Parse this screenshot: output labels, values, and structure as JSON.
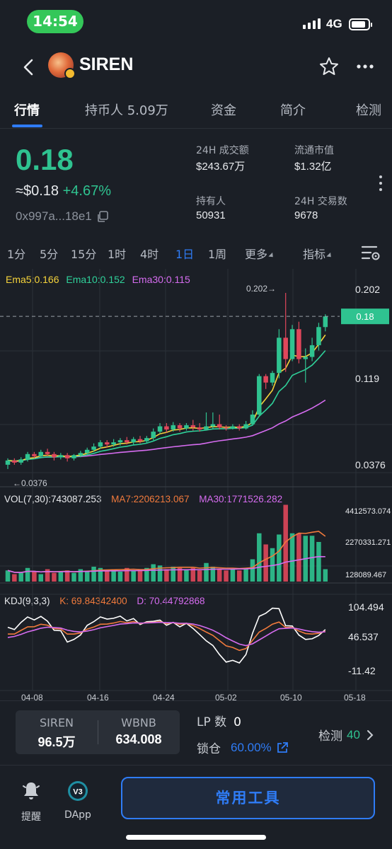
{
  "status": {
    "time": "14:54",
    "network": "4G",
    "battery_level": 0.85
  },
  "nav": {
    "token_name": "SIREN",
    "back_icon": "chevron-left-icon",
    "star_icon": "star-icon",
    "more_icon": "more-dots-icon"
  },
  "tabs": [
    "行情",
    "持币人 5.09万",
    "资金",
    "简介",
    "检测"
  ],
  "active_tab": 0,
  "price": {
    "main": "0.18",
    "usd": "≈$0.18",
    "change": "+4.67%",
    "address": "0x997a...18e1"
  },
  "stats": [
    {
      "label": "24H 成交额",
      "value": "$243.67万"
    },
    {
      "label": "流通市值",
      "value": "$1.32亿"
    },
    {
      "label": "持有人",
      "value": "50931"
    },
    {
      "label": "24H 交易数",
      "value": "9678"
    }
  ],
  "intervals": [
    "1分",
    "5分",
    "15分",
    "1时",
    "4时",
    "1日",
    "1周",
    "更多",
    "指标"
  ],
  "active_interval": 5,
  "indicators": {
    "ema5": "Ema5:0.166",
    "ema10": "Ema10:0.152",
    "ema30": "Ema30:0.115",
    "vol": "VOL(7,30):743087.253",
    "ma7": "MA7:2206213.067",
    "ma30": "MA30:1771526.282",
    "kdj": "KDJ(9,3,3)",
    "k": "K:  69.84342400",
    "d": "D:  70.44792868"
  },
  "colors": {
    "up": "#2fc390",
    "down": "#e0475b",
    "ema5": "#f5d33b",
    "ema10": "#2fd19a",
    "ema30": "#d66cf0",
    "ma7": "#f07a3c",
    "ma30": "#d66cf0",
    "k_line": "#ffffff",
    "accent": "#2f7cf6"
  },
  "chart_data": {
    "type": "candlestick",
    "price_axis": {
      "labels": [
        "0.202",
        "0.119",
        "0.0376"
      ],
      "current": "0.18",
      "max_marker": "0.202→",
      "min_marker": "←0.0376"
    },
    "volume_axis": {
      "labels": [
        "4412573.074",
        "2270331.271",
        "128089.467"
      ]
    },
    "kdj_axis": {
      "labels": [
        "104.494",
        "46.537",
        "-11.42"
      ]
    },
    "x_labels": [
      "04-08",
      "04-16",
      "04-24",
      "05-02",
      "05-10",
      "05-18"
    ],
    "candles": [
      [
        0.041,
        0.045,
        0.037,
        0.047
      ],
      [
        0.045,
        0.043,
        0.041,
        0.047
      ],
      [
        0.043,
        0.046,
        0.041,
        0.048
      ],
      [
        0.046,
        0.051,
        0.044,
        0.053
      ],
      [
        0.051,
        0.049,
        0.047,
        0.053
      ],
      [
        0.049,
        0.053,
        0.047,
        0.055
      ],
      [
        0.053,
        0.051,
        0.049,
        0.056
      ],
      [
        0.051,
        0.048,
        0.045,
        0.053
      ],
      [
        0.048,
        0.05,
        0.046,
        0.052
      ],
      [
        0.05,
        0.047,
        0.044,
        0.052
      ],
      [
        0.047,
        0.05,
        0.045,
        0.051
      ],
      [
        0.05,
        0.052,
        0.048,
        0.054
      ],
      [
        0.052,
        0.055,
        0.05,
        0.057
      ],
      [
        0.055,
        0.058,
        0.053,
        0.061
      ],
      [
        0.058,
        0.062,
        0.056,
        0.064
      ],
      [
        0.062,
        0.06,
        0.057,
        0.064
      ],
      [
        0.06,
        0.062,
        0.058,
        0.065
      ],
      [
        0.062,
        0.064,
        0.059,
        0.066
      ],
      [
        0.064,
        0.062,
        0.06,
        0.067
      ],
      [
        0.062,
        0.065,
        0.06,
        0.067
      ],
      [
        0.065,
        0.063,
        0.061,
        0.068
      ],
      [
        0.063,
        0.066,
        0.061,
        0.068
      ],
      [
        0.066,
        0.072,
        0.064,
        0.075
      ],
      [
        0.072,
        0.077,
        0.07,
        0.08
      ],
      [
        0.077,
        0.074,
        0.071,
        0.08
      ],
      [
        0.074,
        0.078,
        0.072,
        0.081
      ],
      [
        0.078,
        0.075,
        0.072,
        0.08
      ],
      [
        0.075,
        0.078,
        0.073,
        0.08
      ],
      [
        0.078,
        0.076,
        0.073,
        0.083
      ],
      [
        0.076,
        0.074,
        0.072,
        0.08
      ],
      [
        0.074,
        0.077,
        0.073,
        0.09
      ],
      [
        0.077,
        0.079,
        0.075,
        0.09
      ],
      [
        0.079,
        0.076,
        0.074,
        0.088
      ],
      [
        0.076,
        0.075,
        0.073,
        0.078
      ],
      [
        0.075,
        0.077,
        0.074,
        0.079
      ],
      [
        0.077,
        0.075,
        0.073,
        0.079
      ],
      [
        0.075,
        0.079,
        0.074,
        0.082
      ],
      [
        0.079,
        0.088,
        0.078,
        0.092
      ],
      [
        0.088,
        0.124,
        0.086,
        0.126
      ],
      [
        0.124,
        0.118,
        0.112,
        0.126
      ],
      [
        0.118,
        0.127,
        0.115,
        0.129
      ],
      [
        0.127,
        0.16,
        0.122,
        0.168
      ],
      [
        0.16,
        0.14,
        0.128,
        0.202
      ],
      [
        0.14,
        0.168,
        0.138,
        0.172
      ],
      [
        0.168,
        0.14,
        0.136,
        0.175
      ],
      [
        0.14,
        0.142,
        0.118,
        0.15
      ],
      [
        0.142,
        0.153,
        0.138,
        0.16
      ],
      [
        0.153,
        0.17,
        0.148,
        0.174
      ],
      [
        0.17,
        0.18,
        0.166,
        0.182
      ]
    ],
    "volume": [
      0.45,
      0.3,
      0.35,
      0.55,
      0.4,
      0.3,
      0.5,
      0.35,
      0.4,
      0.45,
      0.35,
      0.5,
      0.4,
      0.6,
      0.55,
      0.45,
      0.5,
      0.4,
      0.55,
      0.45,
      0.5,
      0.55,
      0.7,
      0.65,
      0.5,
      0.6,
      0.55,
      0.5,
      0.55,
      0.45,
      0.75,
      0.6,
      0.5,
      0.45,
      0.5,
      0.45,
      0.55,
      0.9,
      1.95,
      1.5,
      1.35,
      1.9,
      3.1,
      1.95,
      1.95,
      1.85,
      1.85,
      1.6,
      0.5
    ]
  },
  "bottom": {
    "pair": [
      {
        "name": "SIREN",
        "value": "96.5万"
      },
      {
        "name": "WBNB",
        "value": "634.008"
      }
    ],
    "lp_label": "LP 数",
    "lp_value": "0",
    "lock_label": "锁仓",
    "lock_value": "60.00%",
    "check_label": "检测",
    "check_value": "40"
  },
  "footer": {
    "alert_label": "提醒",
    "dapp_label": "DApp",
    "dapp_badge": "V3",
    "tools_label": "常用工具"
  }
}
